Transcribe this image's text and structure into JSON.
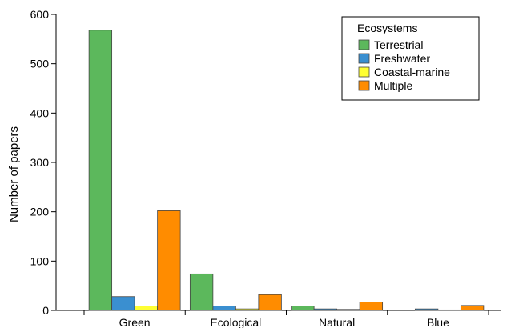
{
  "chart_data": {
    "type": "bar",
    "title": "",
    "xlabel": "",
    "ylabel": "Number of papers",
    "ylim": [
      0,
      600
    ],
    "yticks": [
      0,
      100,
      200,
      300,
      400,
      500,
      600
    ],
    "categories": [
      "Green",
      "Ecological",
      "Natural",
      "Blue"
    ],
    "series": [
      {
        "name": "Terrestrial",
        "color": "#5cb85c",
        "values": [
          568,
          74,
          9,
          0
        ]
      },
      {
        "name": "Freshwater",
        "color": "#3a8fd0",
        "values": [
          28,
          9,
          3,
          3
        ]
      },
      {
        "name": "Coastal-marine",
        "color": "#ffff33",
        "values": [
          9,
          3,
          2,
          1
        ]
      },
      {
        "name": "Multiple",
        "color": "#ff8c00",
        "values": [
          202,
          32,
          17,
          10
        ]
      }
    ],
    "legend": {
      "title": "Ecosystems",
      "position": "top-right"
    },
    "grid": false
  }
}
